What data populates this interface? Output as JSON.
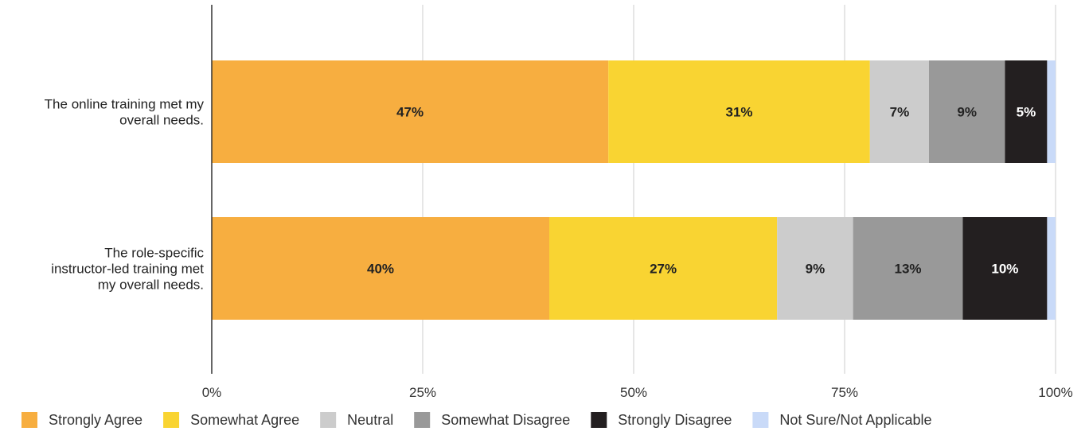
{
  "chart_data": {
    "type": "bar",
    "orientation": "horizontal",
    "stacked": true,
    "categories": [
      [
        "The online training met my",
        "overall needs."
      ],
      [
        "The role-specific",
        "instructor-led training met",
        "my overall needs."
      ]
    ],
    "series": [
      {
        "name": "Strongly Agree",
        "color": "#F7AE40",
        "label_color": "#222222",
        "values": [
          47,
          40
        ],
        "labels": [
          "47%",
          "40%"
        ]
      },
      {
        "name": "Somewhat Agree",
        "color": "#F9D432",
        "label_color": "#222222",
        "values": [
          31,
          27
        ],
        "labels": [
          "31%",
          "27%"
        ]
      },
      {
        "name": "Neutral",
        "color": "#CCCCCC",
        "label_color": "#222222",
        "values": [
          7,
          9
        ],
        "labels": [
          "7%",
          "9%"
        ]
      },
      {
        "name": "Somewhat Disagree",
        "color": "#999999",
        "label_color": "#222222",
        "values": [
          9,
          13
        ],
        "labels": [
          "9%",
          "13%"
        ]
      },
      {
        "name": "Strongly Disagree",
        "color": "#231F20",
        "label_color": "#FFFFFF",
        "values": [
          5,
          10
        ],
        "labels": [
          "5%",
          "10%"
        ]
      },
      {
        "name": "Not Sure/Not Applicable",
        "color": "#C9DAF8",
        "label_color": "#222222",
        "values": [
          1,
          1
        ],
        "labels": [
          "",
          ""
        ]
      }
    ],
    "xlim": [
      0,
      100
    ],
    "xticks": [
      0,
      25,
      50,
      75,
      100
    ],
    "xtick_labels": [
      "0%",
      "25%",
      "50%",
      "75%",
      "100%"
    ],
    "grid": true,
    "legend_position": "bottom",
    "title": "",
    "xlabel": "",
    "ylabel": ""
  }
}
